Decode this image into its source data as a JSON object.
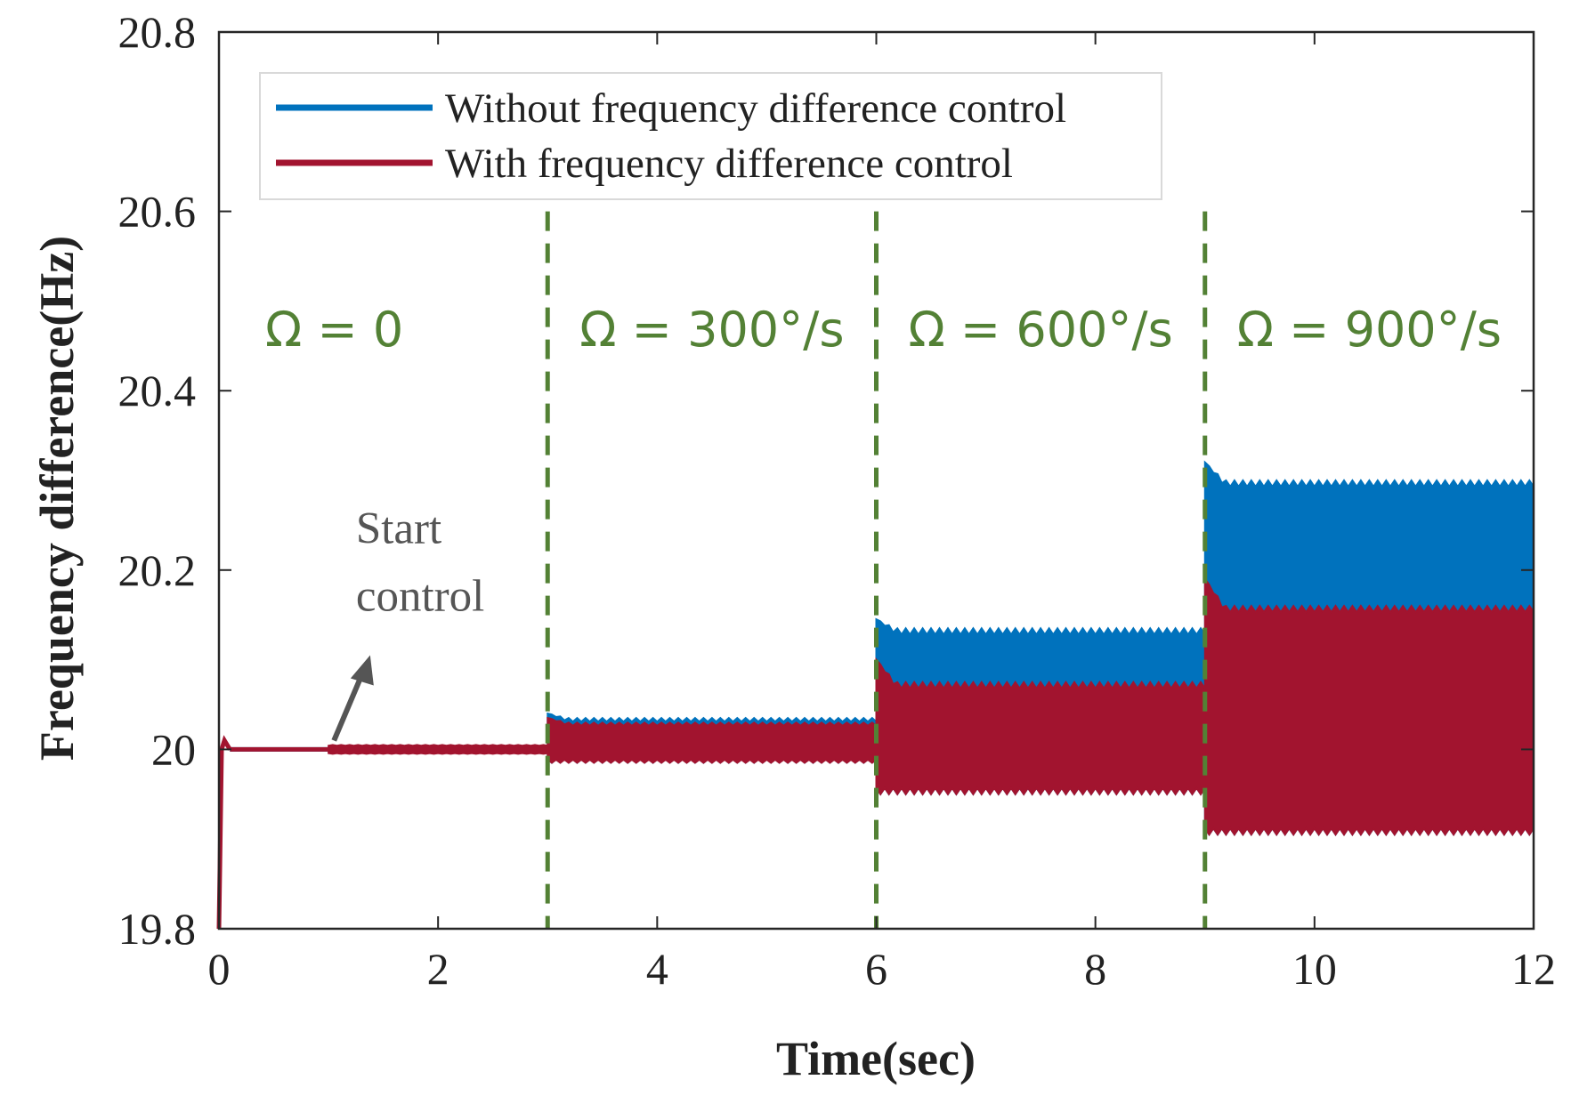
{
  "chart_data": {
    "type": "line",
    "title": "",
    "xlabel": "Time(sec)",
    "ylabel": "Frequency difference(Hz)",
    "xlim": [
      0,
      12
    ],
    "ylim": [
      19.8,
      20.8
    ],
    "xticks": [
      0,
      2,
      4,
      6,
      8,
      10,
      12
    ],
    "yticks": [
      19.8,
      20,
      20.2,
      20.4,
      20.6,
      20.8
    ],
    "xtick_labels": [
      "0",
      "2",
      "4",
      "6",
      "8",
      "10",
      "12"
    ],
    "ytick_labels": [
      "19.8",
      "20",
      "20.2",
      "20.4",
      "20.6",
      "20.8"
    ],
    "grid": false,
    "legend_position": "top-left",
    "series": [
      {
        "name": "Without frequency difference control",
        "color": "#0072bd",
        "style": "oscillating-band",
        "segments": [
          {
            "x": [
              0.1,
              3.0
            ],
            "upper": 20.0,
            "lower": 20.0
          },
          {
            "x": [
              3.0,
              6.0
            ],
            "upper": 20.035,
            "lower": 19.985,
            "peak": 20.04
          },
          {
            "x": [
              6.0,
              9.0
            ],
            "upper": 20.135,
            "lower": 19.95,
            "peak": 20.145
          },
          {
            "x": [
              9.0,
              12.0
            ],
            "upper": 20.3,
            "lower": 19.905,
            "peak": 20.32
          }
        ]
      },
      {
        "name": "With frequency difference control",
        "color": "#a2142f",
        "style": "oscillating-band",
        "startup": {
          "x": [
            0,
            0.1
          ],
          "min": 19.8,
          "overshoot": 20.01
        },
        "segments": [
          {
            "x": [
              0.1,
              1.0
            ],
            "upper": 20.0,
            "lower": 20.0
          },
          {
            "x": [
              1.0,
              3.0
            ],
            "upper": 20.005,
            "lower": 19.995
          },
          {
            "x": [
              3.0,
              6.0
            ],
            "upper": 20.03,
            "lower": 19.985,
            "peak": 20.035
          },
          {
            "x": [
              6.0,
              9.0
            ],
            "upper": 20.075,
            "lower": 19.95,
            "peak": 20.1
          },
          {
            "x": [
              9.0,
              12.0
            ],
            "upper": 20.16,
            "lower": 19.905,
            "peak": 20.19
          }
        ]
      }
    ],
    "vlines": {
      "x": [
        3,
        6,
        9
      ],
      "style": "dashed",
      "color": "#538135"
    },
    "regions": [
      {
        "label": "Ω = 0",
        "x_start": 0,
        "x_end": 3
      },
      {
        "label": "Ω = 300°/s",
        "x_start": 3,
        "x_end": 6
      },
      {
        "label": "Ω = 600°/s",
        "x_start": 6,
        "x_end": 9
      },
      {
        "label": "Ω = 900°/s",
        "x_start": 9,
        "x_end": 12
      }
    ],
    "annotations": [
      {
        "lines": [
          "Start",
          "control"
        ],
        "arrow_to": {
          "x": 1.05,
          "y": 20.0
        }
      }
    ],
    "annotation_color": "#555555",
    "region_label_color": "#538135"
  }
}
